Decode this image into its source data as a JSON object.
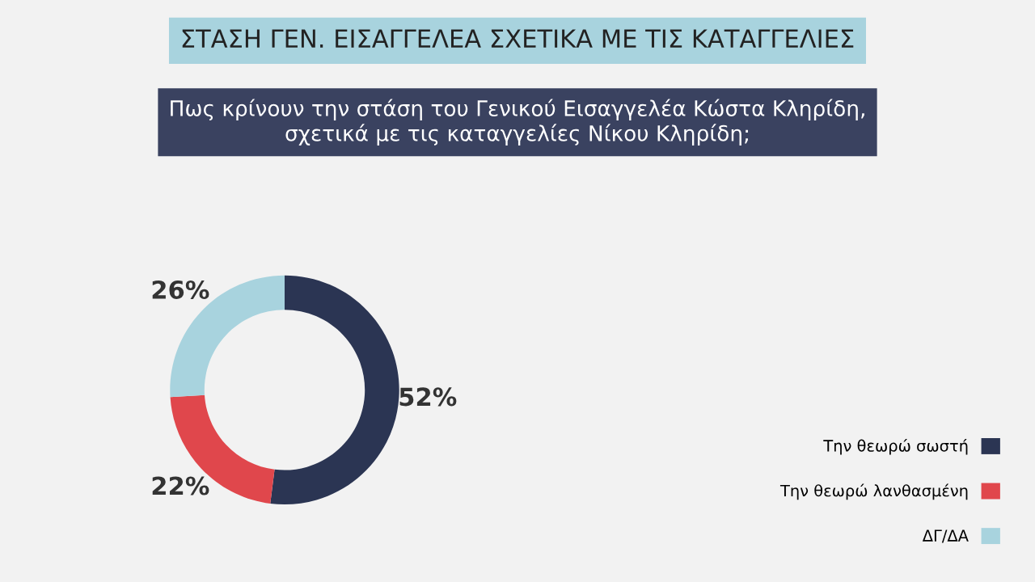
{
  "chart_data": {
    "type": "donut",
    "title": "ΣΤΑΣΗ ΓΕΝ. ΕΙΣΑΓΓΕΛΕΑ ΣΧΕΤΙΚΑ ΜΕ ΤΙΣ ΚΑΤΑΓΓΕΛΙΕΣ",
    "subtitle": "Πως κρίνουν την στάση του Γενικού Εισαγγελέα Κώστα Κληρίδη,\nσχετικά με τις καταγγελίες Νίκου Κληρίδη;",
    "categories": [
      "Την θεωρώ σωστή",
      "Την θεωρώ λανθασμένη",
      "ΔΓ/ΔΑ"
    ],
    "values": [
      52,
      22,
      26
    ],
    "value_labels": [
      "52%",
      "22%",
      "26%"
    ],
    "colors": [
      "#2b3553",
      "#e0474c",
      "#a8d3de"
    ],
    "legend": "bottom right"
  }
}
